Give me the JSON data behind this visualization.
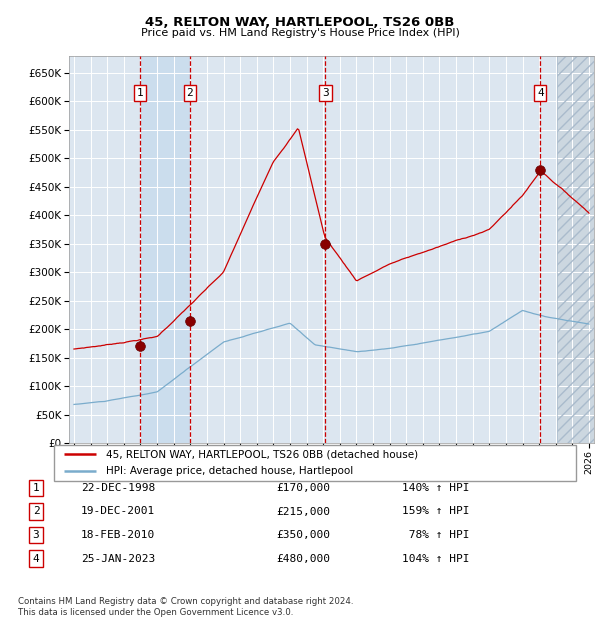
{
  "title1": "45, RELTON WAY, HARTLEPOOL, TS26 0BB",
  "title2": "Price paid vs. HM Land Registry's House Price Index (HPI)",
  "ylim": [
    0,
    680000
  ],
  "yticks": [
    0,
    50000,
    100000,
    150000,
    200000,
    250000,
    300000,
    350000,
    400000,
    450000,
    500000,
    550000,
    600000,
    650000
  ],
  "xlim_start": 1994.7,
  "xlim_end": 2026.3,
  "sale_dates": [
    1998.978,
    2001.969,
    2010.131,
    2023.069
  ],
  "sale_prices": [
    170000,
    215000,
    350000,
    480000
  ],
  "sale_labels": [
    "1",
    "2",
    "3",
    "4"
  ],
  "legend_line1": "45, RELTON WAY, HARTLEPOOL, TS26 0BB (detached house)",
  "legend_line2": "HPI: Average price, detached house, Hartlepool",
  "table_rows": [
    [
      "1",
      "22-DEC-1998",
      "£170,000",
      "140% ↑ HPI"
    ],
    [
      "2",
      "19-DEC-2001",
      "£215,000",
      "159% ↑ HPI"
    ],
    [
      "3",
      "18-FEB-2010",
      "£350,000",
      " 78% ↑ HPI"
    ],
    [
      "4",
      "25-JAN-2023",
      "£480,000",
      "104% ↑ HPI"
    ]
  ],
  "footer": "Contains HM Land Registry data © Crown copyright and database right 2024.\nThis data is licensed under the Open Government Licence v3.0.",
  "bg_chart": "#dce6f0",
  "grid_color": "#ffffff",
  "red_line_color": "#cc0000",
  "blue_line_color": "#7aaccc",
  "sale_marker_color": "#880000",
  "vline_color": "#cc0000",
  "label_box_color": "#ffffff",
  "label_box_edge": "#cc0000",
  "shade_between_color": "#c8dcea",
  "future_hatch_color": "#b8c8d4"
}
